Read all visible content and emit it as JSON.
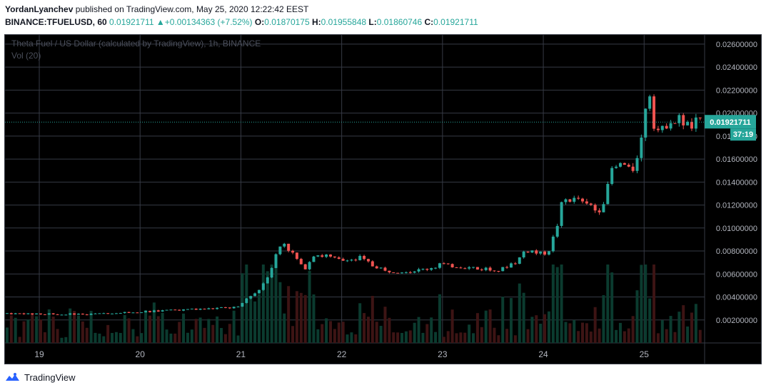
{
  "header": {
    "author": "YordanLyanchev",
    "published_text": "published on TradingView.com, May 25, 2020 12:22:42 EEST",
    "symbol_interval": "BINANCE:TFUELUSD, 60",
    "last_price": "0.01921711",
    "change": "+0.00134363 (+7.52%)",
    "o_label": "O:",
    "o_value": "0.01870175",
    "h_label": "H:",
    "h_value": "0.01955848",
    "l_label": "L:",
    "l_value": "0.01860746",
    "c_label": "C:",
    "c_value": "0.01921711",
    "up_arrow": "▲"
  },
  "footer": {
    "brand": "TradingView",
    "logo_icon": "tradingview-logo-icon"
  },
  "chart_data": {
    "type": "candlestick",
    "title": "Theta Fuel / US Dollar (calculated by TradingView), 1h, BINANCE",
    "volume_label": "Vol (20)",
    "x_ticks": [
      "19",
      "20",
      "21",
      "22",
      "23",
      "24",
      "25"
    ],
    "y_ticks": [
      "0.00200000",
      "0.00400000",
      "0.00600000",
      "0.00800000",
      "0.01000000",
      "0.01200000",
      "0.01400000",
      "0.01600000",
      "0.01800000",
      "0.02000000",
      "0.02200000",
      "0.02400000",
      "0.02600000"
    ],
    "y_tick_values": [
      0.002,
      0.004,
      0.006,
      0.008,
      0.01,
      0.012,
      0.014,
      0.016,
      0.018,
      0.02,
      0.022,
      0.024,
      0.026
    ],
    "ylim": [
      0.0,
      0.0268
    ],
    "day_index_range": [
      18.66,
      25.6
    ],
    "current_price": 0.01921711,
    "current_price_label": "0.01921711",
    "countdown_label": "37:19",
    "grid": true,
    "colors": {
      "up": "#26a69a",
      "down": "#ef5350",
      "background": "#000000",
      "grid": "#363a45",
      "text": "#b2b5be",
      "up_vol": "#0b3b2f",
      "down_vol": "#3d1414"
    },
    "price_path": [
      {
        "t": 18.66,
        "p": 0.00255
      },
      {
        "t": 19.5,
        "p": 0.0025
      },
      {
        "t": 20.0,
        "p": 0.0027
      },
      {
        "t": 20.5,
        "p": 0.0029
      },
      {
        "t": 21.0,
        "p": 0.0031
      },
      {
        "t": 21.1,
        "p": 0.004
      },
      {
        "t": 21.2,
        "p": 0.0047
      },
      {
        "t": 21.3,
        "p": 0.006
      },
      {
        "t": 21.43,
        "p": 0.009
      },
      {
        "t": 21.55,
        "p": 0.0075
      },
      {
        "t": 21.65,
        "p": 0.0064
      },
      {
        "t": 21.75,
        "p": 0.0078
      },
      {
        "t": 22.0,
        "p": 0.0072
      },
      {
        "t": 22.2,
        "p": 0.0074
      },
      {
        "t": 22.45,
        "p": 0.0062
      },
      {
        "t": 22.8,
        "p": 0.0063
      },
      {
        "t": 23.0,
        "p": 0.0068
      },
      {
        "t": 23.3,
        "p": 0.0065
      },
      {
        "t": 23.6,
        "p": 0.0064
      },
      {
        "t": 23.75,
        "p": 0.007
      },
      {
        "t": 23.85,
        "p": 0.008
      },
      {
        "t": 24.05,
        "p": 0.0078
      },
      {
        "t": 24.1,
        "p": 0.0085
      },
      {
        "t": 24.15,
        "p": 0.01
      },
      {
        "t": 24.2,
        "p": 0.012
      },
      {
        "t": 24.27,
        "p": 0.0125
      },
      {
        "t": 24.4,
        "p": 0.0122
      },
      {
        "t": 24.5,
        "p": 0.0118
      },
      {
        "t": 24.6,
        "p": 0.0116
      },
      {
        "t": 24.7,
        "p": 0.015
      },
      {
        "t": 24.8,
        "p": 0.0154
      },
      {
        "t": 24.9,
        "p": 0.015
      },
      {
        "t": 24.97,
        "p": 0.017
      },
      {
        "t": 25.02,
        "p": 0.018
      },
      {
        "t": 25.05,
        "p": 0.0235
      },
      {
        "t": 25.12,
        "p": 0.019
      },
      {
        "t": 25.2,
        "p": 0.0185
      },
      {
        "t": 25.3,
        "p": 0.0197
      },
      {
        "t": 25.45,
        "p": 0.019
      },
      {
        "t": 25.55,
        "p": 0.01921
      }
    ]
  }
}
